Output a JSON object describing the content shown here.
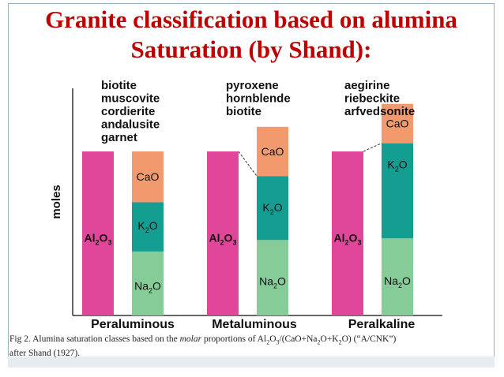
{
  "title": {
    "line1": "Granite classification based on alumina",
    "line2": "Saturation (by Shand):"
  },
  "colors": {
    "al2o3": "#e0479a",
    "cao": "#f3996e",
    "k2o": "#149e91",
    "na2o": "#86cc98",
    "title": "#c00000"
  },
  "axis": {
    "ylabel": "moles"
  },
  "species": {
    "al2o3": {
      "base": "Al",
      "s1": "2",
      "mid": "O",
      "s2": "3"
    },
    "cao": {
      "text": "CaO"
    },
    "k2o": {
      "base": "K",
      "s1": "2",
      "mid": "O"
    },
    "na2o": {
      "base": "Na",
      "s1": "2",
      "mid": "O"
    }
  },
  "chart_data": {
    "type": "bar",
    "ylabel": "moles",
    "categories": [
      "Peraluminous",
      "Metaluminous",
      "Peralkaline"
    ],
    "groups": [
      {
        "name": "Peraluminous",
        "al2o3": 1.0,
        "cao": 0.31,
        "k2o": 0.3,
        "na2o": 0.39,
        "minerals": [
          "biotite",
          "muscovite",
          "cordierite",
          "andalusite",
          "garnet"
        ]
      },
      {
        "name": "Metaluminous",
        "al2o3": 1.0,
        "cao": 0.3,
        "k2o": 0.39,
        "na2o": 0.46,
        "minerals": [
          "pyroxene",
          "hornblende",
          "biotite"
        ]
      },
      {
        "name": "Peralkaline",
        "al2o3": 1.0,
        "cao": 0.24,
        "k2o": 0.58,
        "na2o": 0.47,
        "minerals": [
          "aegirine",
          "riebeckite",
          "arfvedsonite"
        ]
      }
    ]
  },
  "caption": {
    "line1_prefix": "Fig 2. Alumina saturation classes based on the ",
    "line1_italic": "molar",
    "line1_mid": " proportions of  Al",
    "line1_f1": "(CaO+Na",
    "line1_f2": "O+K",
    "line1_f3": "O) (“A/CNK”)",
    "sub2": "2",
    "sub3": "3",
    "line2": "after Shand (1927)."
  }
}
